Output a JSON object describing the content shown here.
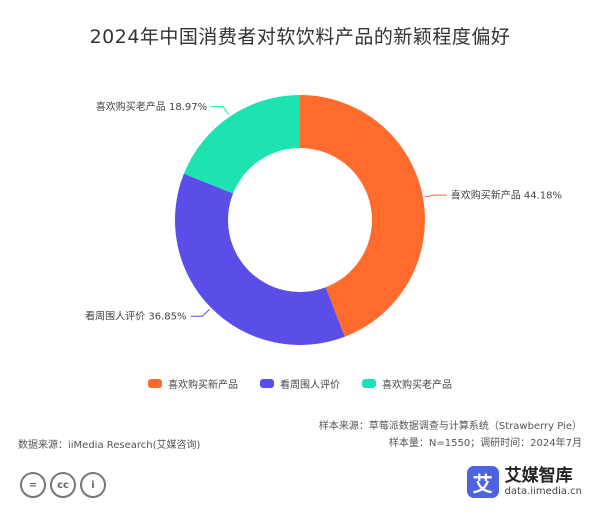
{
  "header": {
    "title": "2024年中国消费者对软饮料产品的新颖程度偏好"
  },
  "chart_data": {
    "type": "pie",
    "donut": true,
    "title": "2024年中国消费者对软饮料产品的新颖程度偏好",
    "series": [
      {
        "name": "喜欢购买新产品",
        "value": 44.18,
        "label": "喜欢购买新产品 44.18%",
        "color": "#ff6b2c"
      },
      {
        "name": "看周围人评价",
        "value": 36.85,
        "label": "看周围人评价 36.85%",
        "color": "#5b4ee8"
      },
      {
        "name": "喜欢购买老产品",
        "value": 18.97,
        "label": "喜欢购买老产品 18.97%",
        "color": "#1de3b0"
      }
    ],
    "legend_position": "bottom"
  },
  "footer": {
    "source_left": "数据来源：iiMedia Research(艾媒咨询)",
    "sample_source": "样本来源：草莓派数据调查与计算系统（Strawberry Pie）",
    "sample_info": "样本量：N=1550；调研时间：2024年7月"
  },
  "license": {
    "badges": [
      "=",
      "cc",
      "i"
    ]
  },
  "brand": {
    "logo_char": "艾",
    "name": "艾媒智库",
    "url": "data.iimedia.cn"
  }
}
